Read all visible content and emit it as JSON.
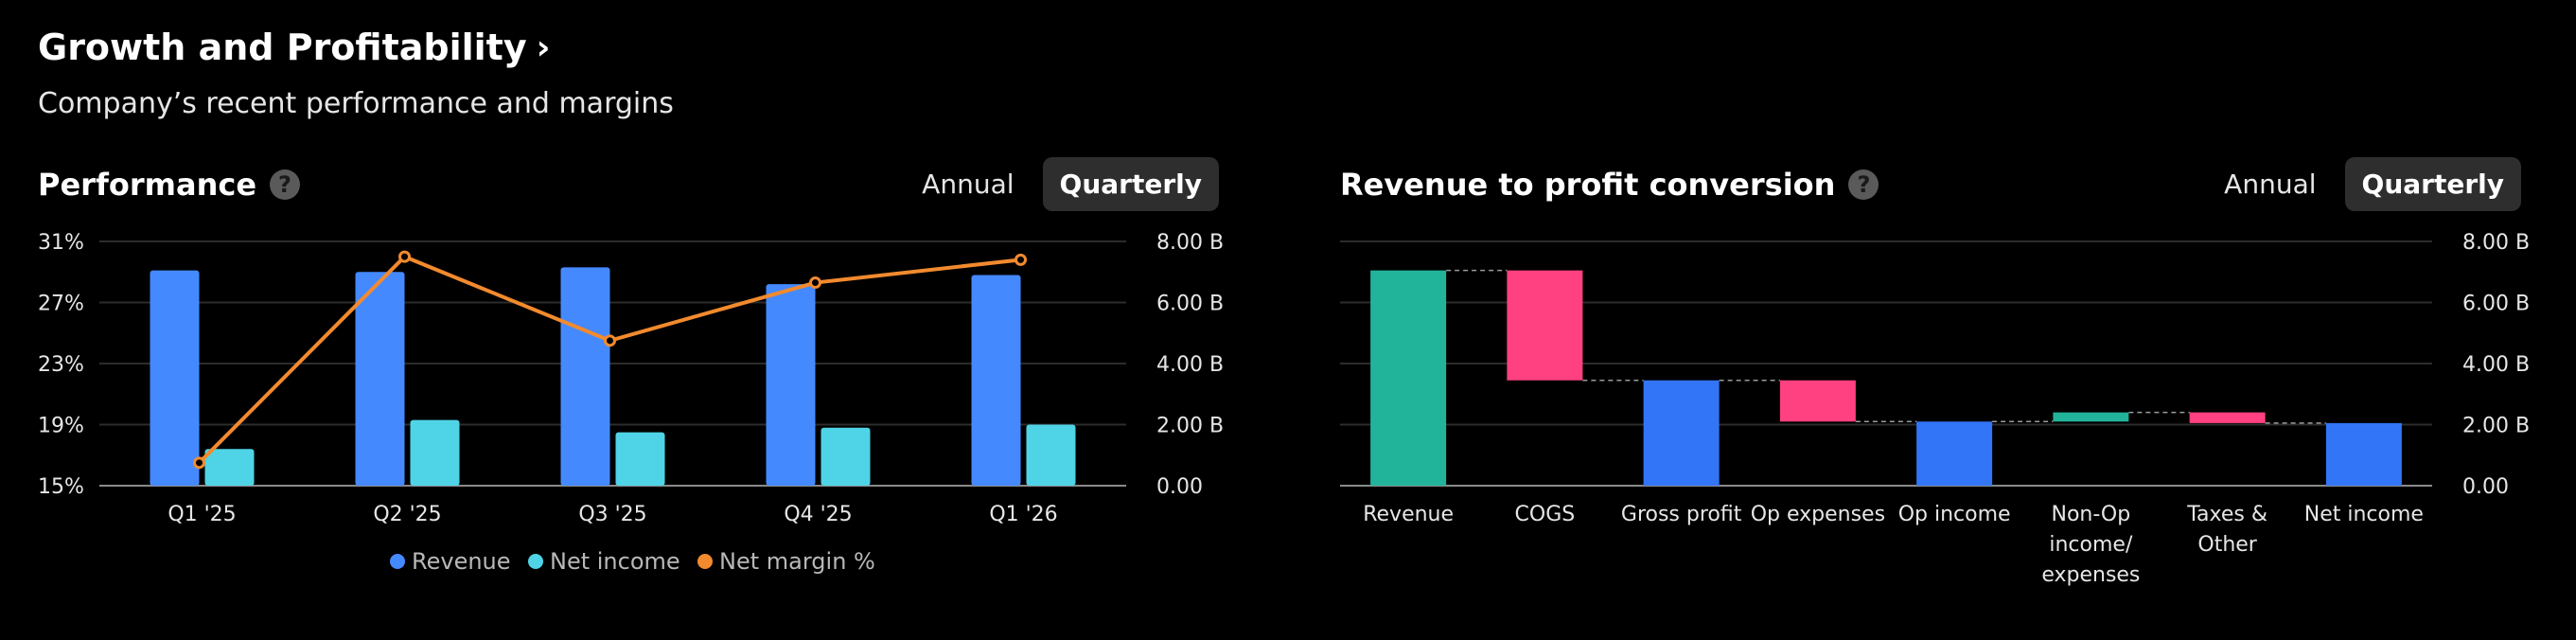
{
  "header": {
    "title": "Growth and Profitability",
    "chevron": "›",
    "subtitle": "Company’s recent performance and margins"
  },
  "performance": {
    "title": "Performance",
    "help": "?",
    "toggle": {
      "annual": "Annual",
      "quarterly": "Quarterly",
      "selected": "Quarterly"
    }
  },
  "conversion": {
    "title": "Revenue to profit conversion",
    "help": "?",
    "toggle": {
      "annual": "Annual",
      "quarterly": "Quarterly",
      "selected": "Quarterly"
    }
  },
  "colors": {
    "revenue": "#4589ff",
    "net_income": "#4fd3e6",
    "net_margin": "#f28a2e",
    "positive": "#22b39b",
    "negative": "#ff4081",
    "subtotal": "#3275f6",
    "grid": "#2c2c2c",
    "axis": "#8a8a8a",
    "text": "#e6e6e6"
  },
  "chart_data": [
    {
      "type": "bar",
      "title": "Performance",
      "categories": [
        "Q1 '25",
        "Q2 '25",
        "Q3 '25",
        "Q4 '25",
        "Q1 '26"
      ],
      "series": [
        {
          "name": "Revenue",
          "axis": "right",
          "values": [
            7.05,
            7.0,
            7.15,
            6.6,
            6.9
          ]
        },
        {
          "name": "Net income",
          "axis": "right",
          "values": [
            1.2,
            2.15,
            1.75,
            1.9,
            2.0
          ]
        },
        {
          "name": "Net margin %",
          "type": "line",
          "axis": "left",
          "values": [
            16.5,
            30.0,
            24.5,
            28.3,
            29.8
          ]
        }
      ],
      "left_axis": {
        "ticks": [
          "31%",
          "27%",
          "23%",
          "19%",
          "15%"
        ],
        "tick_values": [
          31,
          27,
          23,
          19,
          15
        ],
        "range": [
          15,
          31
        ]
      },
      "right_axis": {
        "ticks": [
          "8.00 B",
          "6.00 B",
          "4.00 B",
          "2.00 B",
          "0.00"
        ],
        "tick_values": [
          8,
          6,
          4,
          2,
          0
        ],
        "range": [
          0,
          8
        ]
      },
      "legend": [
        "Revenue",
        "Net income",
        "Net margin %"
      ]
    },
    {
      "type": "waterfall",
      "title": "Revenue to profit conversion",
      "categories": [
        "Revenue",
        "COGS",
        "Gross profit",
        "Op expenses",
        "Op income",
        "Non-Op income/ expenses",
        "Taxes & Other",
        "Net income"
      ],
      "label_lines": [
        [
          "Revenue"
        ],
        [
          "COGS"
        ],
        [
          "Gross profit"
        ],
        [
          "Op expenses"
        ],
        [
          "Op income"
        ],
        [
          "Non-Op",
          "income/",
          "expenses"
        ],
        [
          "Taxes &",
          "Other"
        ],
        [
          "Net income"
        ]
      ],
      "bars": [
        {
          "kind": "positive",
          "start": 0,
          "end": 7.05
        },
        {
          "kind": "negative",
          "start": 7.05,
          "end": 3.45
        },
        {
          "kind": "subtotal",
          "start": 0,
          "end": 3.45
        },
        {
          "kind": "negative",
          "start": 3.45,
          "end": 2.1
        },
        {
          "kind": "subtotal",
          "start": 0,
          "end": 2.1
        },
        {
          "kind": "positive",
          "start": 2.1,
          "end": 2.4
        },
        {
          "kind": "negative",
          "start": 2.4,
          "end": 2.05
        },
        {
          "kind": "subtotal",
          "start": 0,
          "end": 2.05
        }
      ],
      "right_axis": {
        "ticks": [
          "8.00 B",
          "6.00 B",
          "4.00 B",
          "2.00 B",
          "0.00"
        ],
        "tick_values": [
          8,
          6,
          4,
          2,
          0
        ],
        "range": [
          0,
          8
        ]
      }
    }
  ]
}
